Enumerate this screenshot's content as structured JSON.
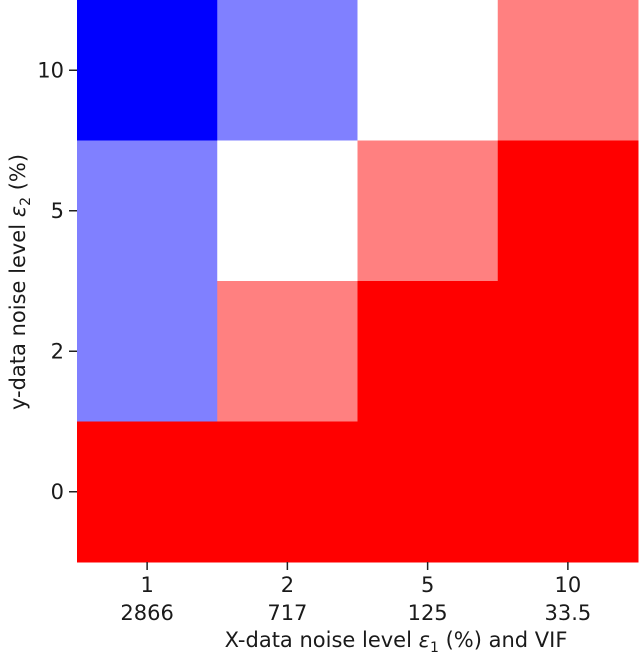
{
  "chart_data": {
    "type": "heatmap",
    "xlabel": "X-data noise level ε₁ (%) and VIF",
    "ylabel": "y-data noise level ε₂ (%)",
    "x_categories": [
      "1",
      "2",
      "5",
      "10"
    ],
    "x_secondary_labels": [
      "2866",
      "717",
      "125",
      "33.5"
    ],
    "y_categories": [
      "0",
      "2",
      "5",
      "10"
    ],
    "colormap": "bwr",
    "colorscale_range": [
      -1,
      1
    ],
    "cells": [
      {
        "x": "1",
        "y": "10",
        "value": -1.0
      },
      {
        "x": "2",
        "y": "10",
        "value": -0.5
      },
      {
        "x": "5",
        "y": "10",
        "value": 0.0
      },
      {
        "x": "10",
        "y": "10",
        "value": 0.5
      },
      {
        "x": "1",
        "y": "5",
        "value": -0.5
      },
      {
        "x": "2",
        "y": "5",
        "value": 0.0
      },
      {
        "x": "5",
        "y": "5",
        "value": 0.5
      },
      {
        "x": "10",
        "y": "5",
        "value": 1.0
      },
      {
        "x": "1",
        "y": "2",
        "value": -0.5
      },
      {
        "x": "2",
        "y": "2",
        "value": 0.5
      },
      {
        "x": "5",
        "y": "2",
        "value": 1.0
      },
      {
        "x": "10",
        "y": "2",
        "value": 1.0
      },
      {
        "x": "1",
        "y": "0",
        "value": 1.0
      },
      {
        "x": "2",
        "y": "0",
        "value": 1.0
      },
      {
        "x": "5",
        "y": "0",
        "value": 1.0
      },
      {
        "x": "10",
        "y": "0",
        "value": 1.0
      }
    ],
    "colors": {
      "blue": "#0000ff",
      "light_blue": "#8080ff",
      "white": "#ffffff",
      "light_red": "#ff8080",
      "red": "#ff0000"
    },
    "grid": false,
    "legend": "none"
  }
}
